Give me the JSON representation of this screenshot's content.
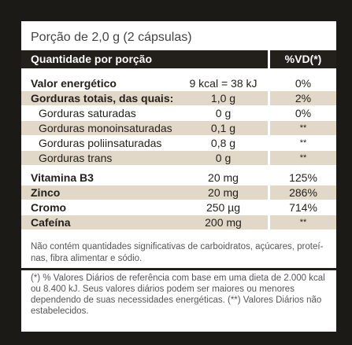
{
  "portion": "Porção de 2,0 g (2 cápsulas)",
  "header": {
    "left": "Quantidade por porção",
    "right": "%VD(*)"
  },
  "rows": [
    {
      "name": "Valor energético",
      "qty": "9 kcal = 38 kJ",
      "vd": "0%"
    },
    {
      "name": "Gorduras totais, das quais:",
      "qty": "1,0 g",
      "vd": "2%"
    },
    {
      "name": "Gorduras saturadas",
      "qty": "0 g",
      "vd": "0%"
    },
    {
      "name": "Gorduras monoinsaturadas",
      "qty": "0,1 g",
      "vd": "**"
    },
    {
      "name": "Gorduras poliinsaturadas",
      "qty": "0,8 g",
      "vd": "**"
    },
    {
      "name": "Gorduras trans",
      "qty": "0 g",
      "vd": "**"
    },
    {
      "name": "Vitamina B3",
      "qty": "20 mg",
      "vd": "125%"
    },
    {
      "name": "Zinco",
      "qty": "20 mg",
      "vd": "286%"
    },
    {
      "name": "Cromo",
      "qty": "250 µg",
      "vd": "714%"
    },
    {
      "name": "Cafeína",
      "qty": "200 mg",
      "vd": "**"
    }
  ],
  "note": "Não contém quantidades significativas de carboidratos, açúcares, proteí-nas, fibra alimentar e sódio.",
  "footnote": "(*) % Valores Diários de referência com base em uma dieta de 2.000 kcal ou 8.400 kJ. Seus valores diários podem ser maiores ou menores dependendo de suas necessidades energéticas. (**) Valores Diários não estabelecidos.",
  "colors": {
    "dark": "#231f1a",
    "shade": "#e1d8c8"
  }
}
